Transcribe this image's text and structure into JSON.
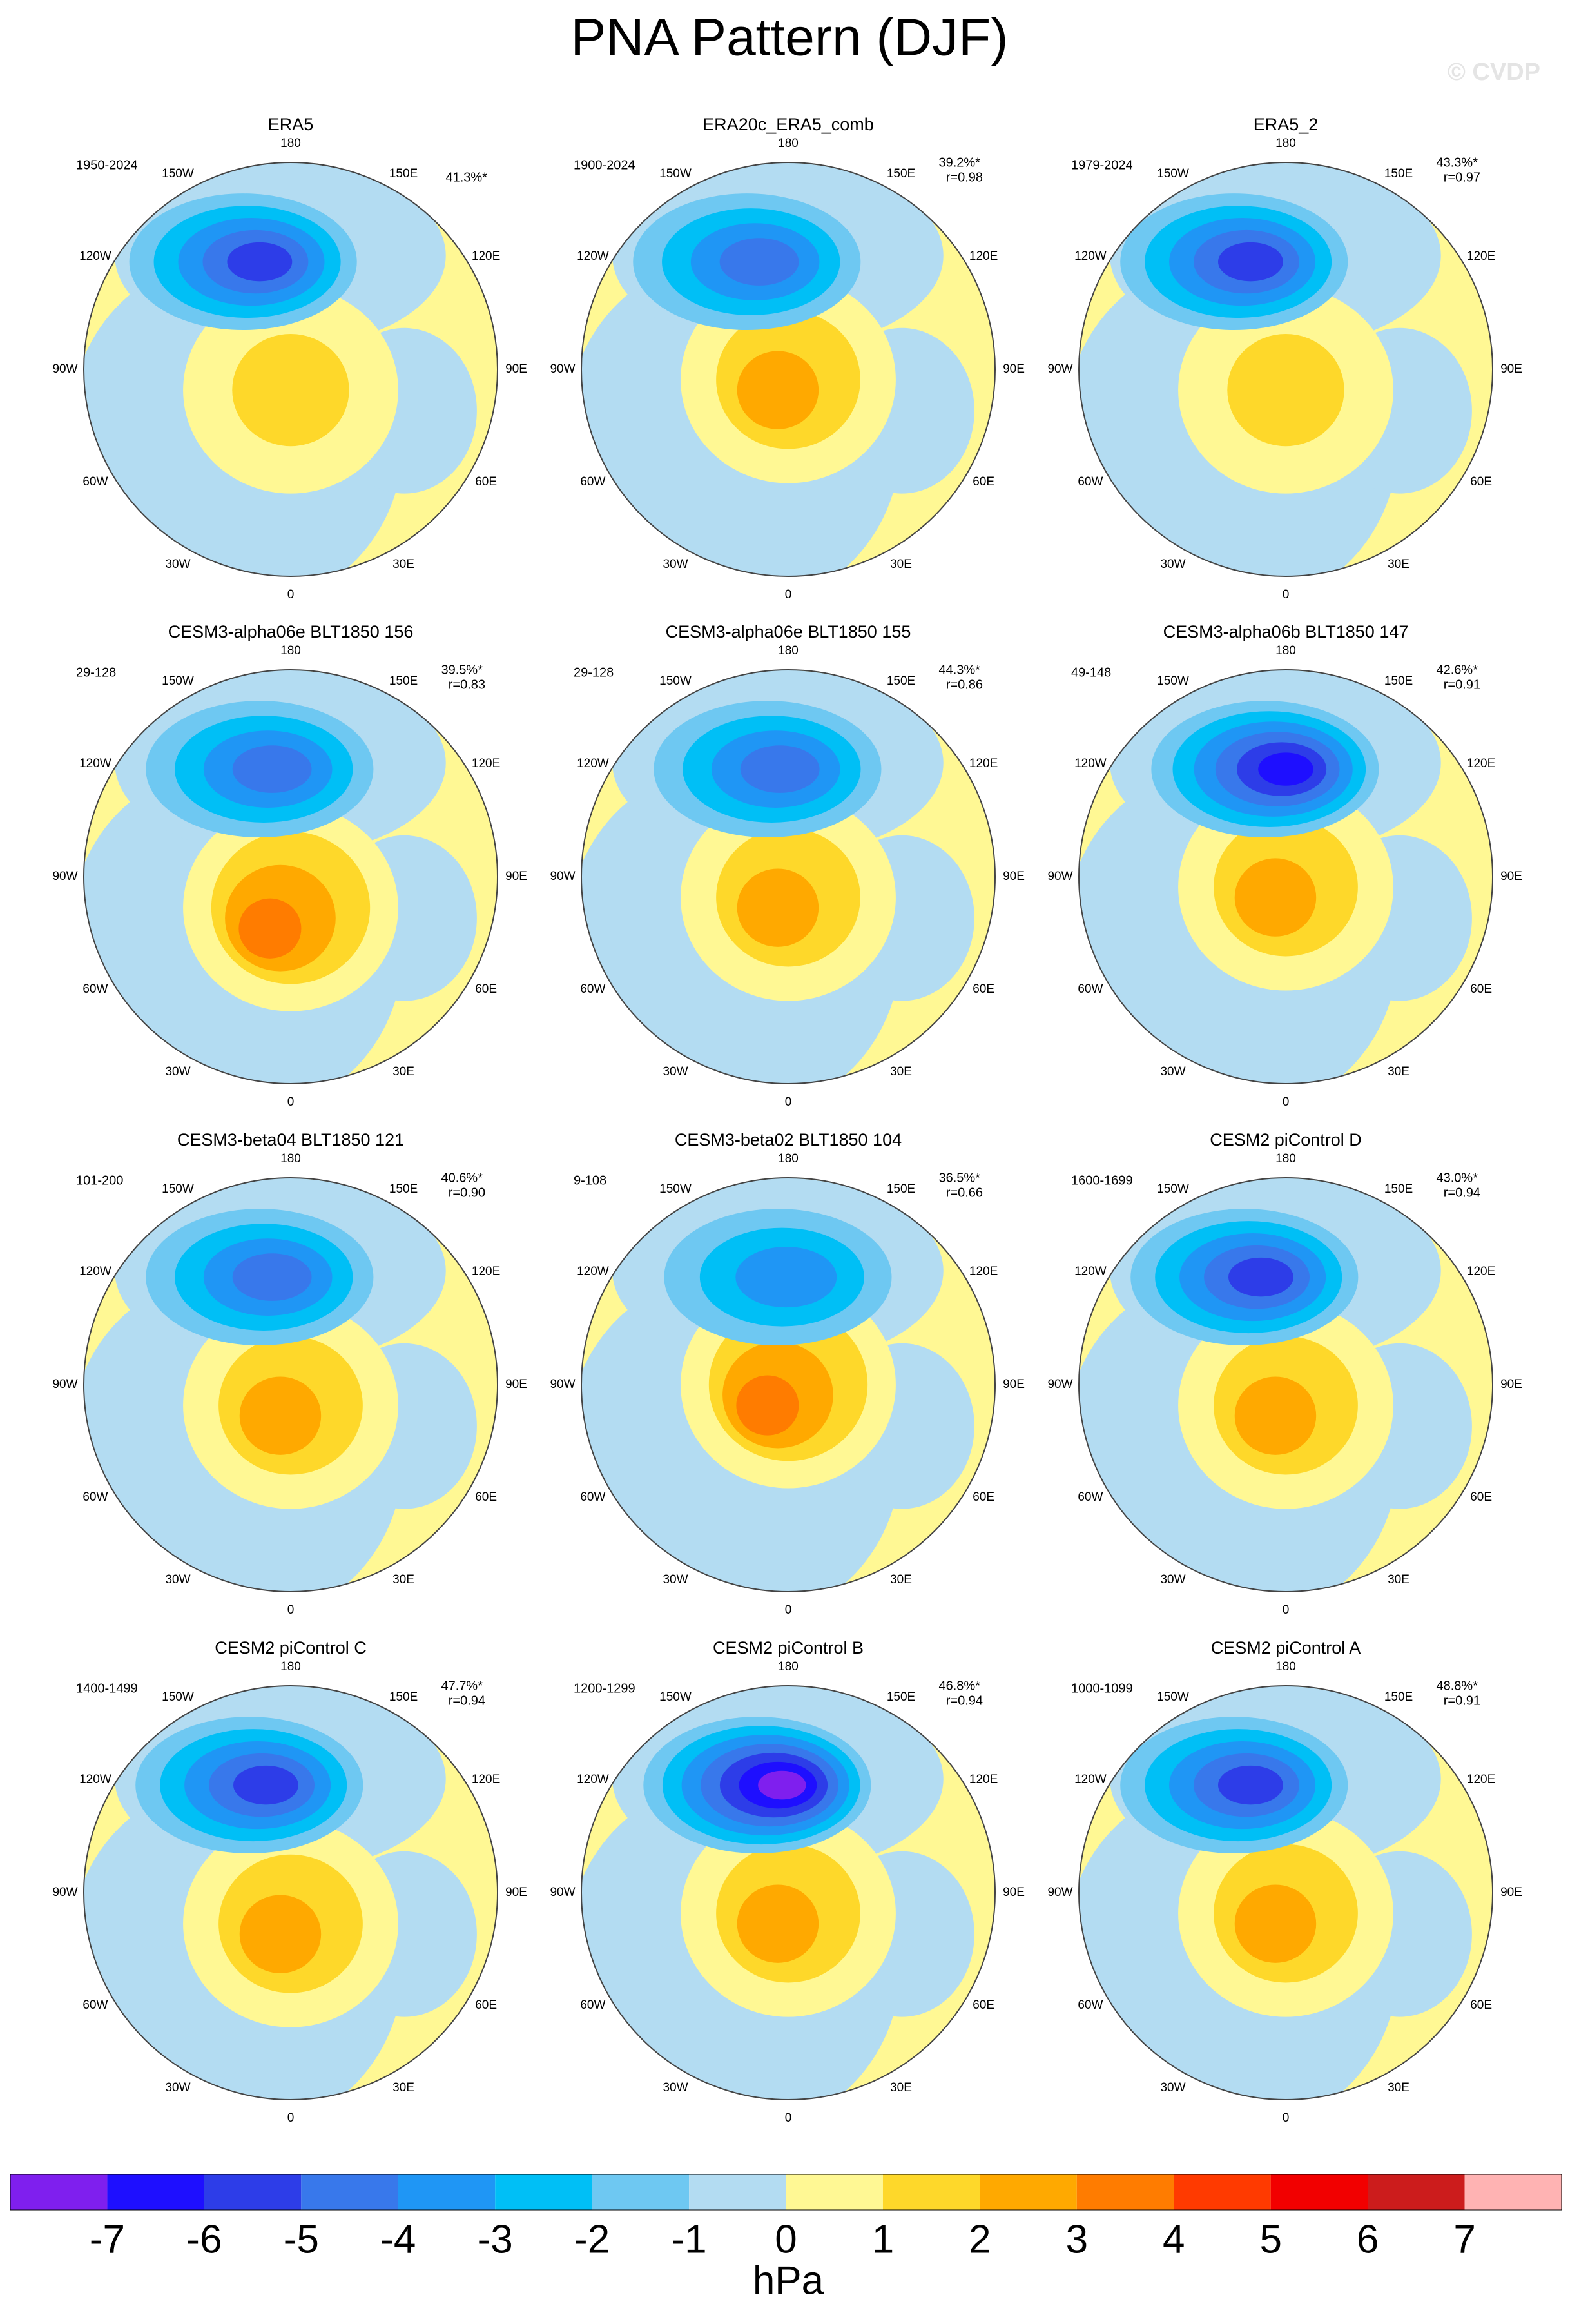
{
  "title": "PNA Pattern (DJF)",
  "watermark": "© CVDP",
  "panels": [
    {
      "title": "ERA5",
      "period": "1950-2024",
      "pct": "41.3%*"
    },
    {
      "title": "ERA20c_ERA5_comb",
      "period": "1900-2024",
      "pct": "39.2%*",
      "r": "r=0.98"
    },
    {
      "title": "ERA5_2",
      "period": "1979-2024",
      "pct": "43.3%*",
      "r": "r=0.97"
    },
    {
      "title": "CESM3-alpha06e BLT1850 156",
      "period": "29-128",
      "pct": "39.5%*",
      "r": "r=0.83"
    },
    {
      "title": "CESM3-alpha06e BLT1850 155",
      "period": "29-128",
      "pct": "44.3%*",
      "r": "r=0.86"
    },
    {
      "title": "CESM3-alpha06b BLT1850 147",
      "period": "49-148",
      "pct": "42.6%*",
      "r": "r=0.91"
    },
    {
      "title": "CESM3-beta04 BLT1850 121",
      "period": "101-200",
      "pct": "40.6%*",
      "r": "r=0.90"
    },
    {
      "title": "CESM3-beta02 BLT1850 104",
      "period": "9-108",
      "pct": "36.5%*",
      "r": "r=0.66"
    },
    {
      "title": "CESM2 piControl D",
      "period": "1600-1699",
      "pct": "43.0%*",
      "r": "r=0.94"
    },
    {
      "title": "CESM2 piControl C",
      "period": "1400-1499",
      "pct": "47.7%*",
      "r": "r=0.94"
    },
    {
      "title": "CESM2 piControl B",
      "period": "1200-1299",
      "pct": "46.8%*",
      "r": "r=0.94"
    },
    {
      "title": "CESM2 piControl A",
      "period": "1000-1099",
      "pct": "48.8%*",
      "r": "r=0.91"
    }
  ],
  "longitude_labels": [
    "180",
    "150E",
    "120E",
    "90E",
    "60E",
    "30E",
    "0",
    "30W",
    "60W",
    "90W",
    "120W",
    "150W"
  ],
  "colorbar": {
    "colors": [
      "#7f1fee",
      "#1e0fff",
      "#2d3de8",
      "#3878eb",
      "#1f96f5",
      "#00bff6",
      "#6ec8f2",
      "#b3dcf2",
      "#fff894",
      "#fed82a",
      "#ffa900",
      "#ff7c00",
      "#ff3a00",
      "#f20000",
      "#cc1c1c",
      "#ffb3b3"
    ],
    "labels": [
      -7,
      -6,
      -5,
      -4,
      -3,
      -2,
      -1,
      0,
      1,
      2,
      3,
      4,
      5,
      6,
      7
    ],
    "unit": "hPa"
  }
}
